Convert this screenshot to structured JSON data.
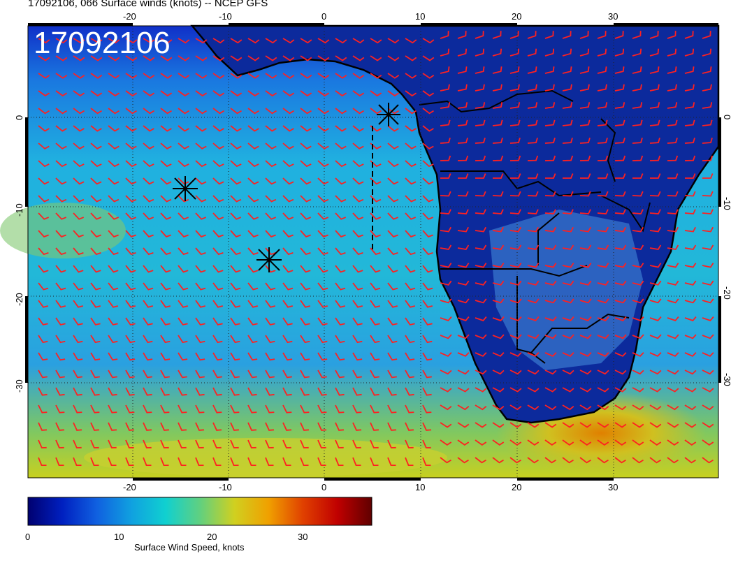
{
  "title": "17092106, 066 Surface winds (knots) -- NCEP GFS",
  "date_stamp": "17092106",
  "map": {
    "lon_ticks": [
      "-20",
      "-10",
      "0",
      "10",
      "20",
      "30"
    ],
    "lat_ticks": [
      "0",
      "-10",
      "-20",
      "-30"
    ],
    "wind_barb_color": "#ff2020",
    "coastline_color": "#000000"
  },
  "colorbar": {
    "label": "Surface Wind Speed, knots",
    "ticks": [
      "0",
      "10",
      "20",
      "30"
    ],
    "range": [
      0,
      37
    ],
    "colors": [
      "#000070",
      "#0020c0",
      "#1060e0",
      "#10a0e0",
      "#10d0d0",
      "#60d080",
      "#d0d020",
      "#f0a000",
      "#e04000",
      "#c00000",
      "#600000"
    ]
  },
  "markers": [
    "asterisk",
    "asterisk",
    "asterisk"
  ]
}
